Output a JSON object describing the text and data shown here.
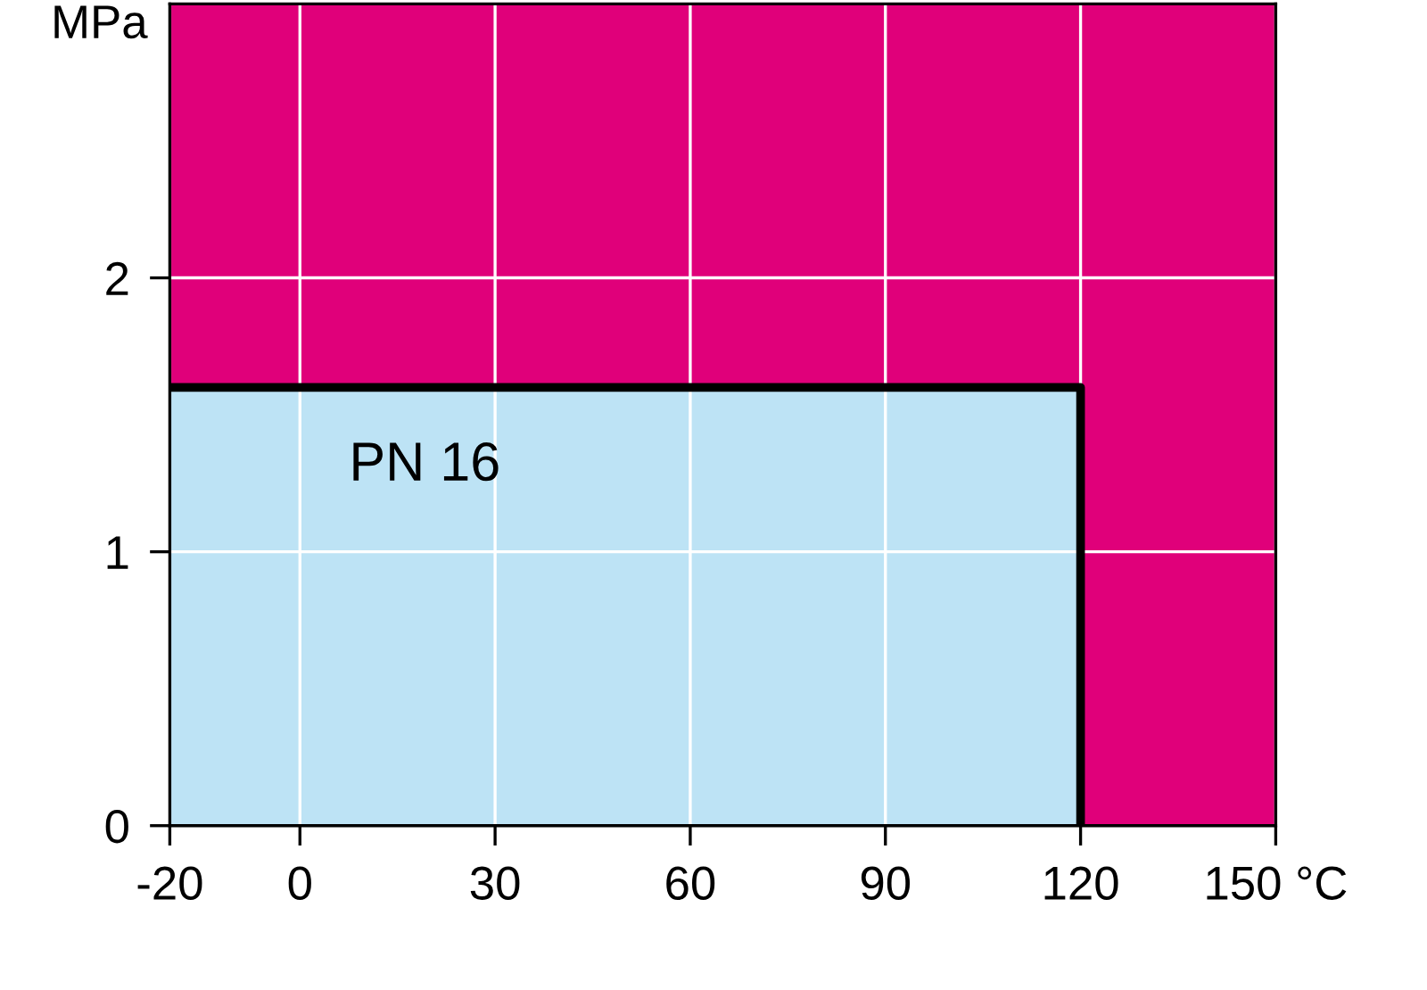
{
  "chart_data": {
    "type": "area",
    "ylabel": "MPa",
    "bands": [
      {
        "axis": "y",
        "from": 0,
        "to": 3,
        "color": "#e0007a"
      }
    ],
    "series": [
      {
        "name": "PN 16",
        "color": "#bde3f5",
        "x": [
          -20,
          120
        ],
        "values": [
          1.6,
          1.6
        ]
      }
    ],
    "xlim": [
      -20,
      150
    ],
    "xticks": [
      -20,
      0,
      30,
      60,
      90,
      120,
      {
        "value": 150,
        "label": "150 °C"
      }
    ],
    "ylim": [
      0,
      3
    ],
    "yticks": [
      0,
      1,
      2
    ],
    "grid": true
  }
}
